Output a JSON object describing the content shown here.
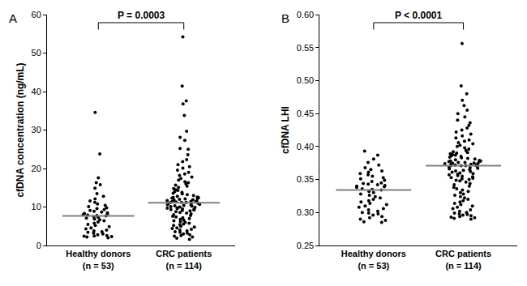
{
  "chart_data": [
    {
      "type": "strip",
      "panel_label": "A",
      "y_label": "cfDNA concentration (ng/mL)",
      "categories": [
        "Healthy donors\n(n = 53)",
        "CRC patients\n(n = 114)"
      ],
      "color": "#000000",
      "median_color": "#808080",
      "values": [
        [
          34.6,
          23.8,
          17.6,
          16.3,
          15.8,
          14.9,
          13.5,
          12.8,
          12.1,
          11.6,
          11.2,
          10.8,
          10.4,
          10.1,
          9.8,
          9.6,
          9.3,
          9.1,
          8.9,
          8.7,
          8.5,
          8.3,
          8.2,
          8.0,
          7.9,
          7.8,
          7.7,
          7.5,
          7.3,
          7.1,
          6.9,
          6.7,
          6.4,
          6.1,
          5.8,
          5.5,
          5.2,
          4.9,
          4.6,
          4.3,
          4.0,
          3.8,
          3.6,
          3.4,
          3.2,
          3.0,
          2.8,
          2.6,
          2.5,
          2.4,
          2.3,
          2.2,
          2.0
        ],
        [
          54.2,
          41.4,
          37.6,
          36.8,
          33.8,
          29.7,
          28.1,
          27.3,
          25.2,
          25.0,
          23.6,
          22.3,
          21.8,
          21.0,
          20.5,
          20.1,
          19.6,
          19.0,
          18.6,
          18.2,
          17.8,
          17.4,
          17.0,
          16.6,
          16.3,
          16.0,
          15.7,
          15.4,
          15.1,
          14.8,
          14.5,
          14.3,
          14.0,
          13.8,
          13.6,
          13.4,
          13.2,
          13.0,
          12.8,
          12.6,
          12.5,
          12.4,
          12.3,
          12.2,
          12.1,
          12.0,
          11.9,
          11.8,
          11.7,
          11.6,
          11.5,
          11.4,
          11.4,
          11.3,
          11.2,
          11.2,
          11.1,
          11.0,
          10.9,
          10.8,
          10.7,
          10.6,
          10.5,
          10.4,
          10.3,
          10.2,
          10.1,
          10.0,
          9.9,
          9.8,
          9.7,
          9.6,
          9.5,
          9.4,
          9.3,
          9.2,
          9.1,
          9.0,
          8.8,
          8.6,
          8.4,
          8.2,
          8.0,
          7.8,
          7.6,
          7.4,
          7.2,
          7.0,
          6.8,
          6.6,
          6.4,
          6.2,
          6.0,
          5.8,
          5.6,
          5.4,
          5.2,
          5.0,
          4.8,
          4.6,
          4.4,
          4.2,
          4.0,
          3.8,
          3.6,
          3.4,
          3.2,
          3.0,
          2.8,
          2.6,
          2.4,
          2.2,
          1.9,
          1.6
        ]
      ],
      "medians": [
        7.7,
        11.1
      ],
      "ylim": [
        0,
        60
      ],
      "yticks": [
        0,
        10,
        20,
        30,
        40,
        50,
        60
      ],
      "annotation": "P = 0.0003"
    },
    {
      "type": "strip",
      "panel_label": "B",
      "y_label": "cfDNA LHI",
      "categories": [
        "Healthy donors\n(n = 53)",
        "CRC patients\n(n = 114)"
      ],
      "color": "#000000",
      "median_color": "#808080",
      "values": [
        [
          0.393,
          0.387,
          0.381,
          0.376,
          0.372,
          0.368,
          0.365,
          0.363,
          0.361,
          0.359,
          0.357,
          0.355,
          0.353,
          0.351,
          0.349,
          0.347,
          0.345,
          0.344,
          0.343,
          0.342,
          0.341,
          0.34,
          0.339,
          0.338,
          0.336,
          0.335,
          0.334,
          0.332,
          0.33,
          0.328,
          0.326,
          0.324,
          0.322,
          0.32,
          0.318,
          0.316,
          0.314,
          0.312,
          0.31,
          0.308,
          0.306,
          0.304,
          0.302,
          0.3,
          0.299,
          0.298,
          0.296,
          0.294,
          0.292,
          0.29,
          0.288,
          0.286,
          0.285
        ],
        [
          0.556,
          0.492,
          0.48,
          0.47,
          0.462,
          0.455,
          0.45,
          0.445,
          0.44,
          0.436,
          0.432,
          0.428,
          0.425,
          0.422,
          0.419,
          0.416,
          0.413,
          0.41,
          0.408,
          0.406,
          0.404,
          0.402,
          0.4,
          0.398,
          0.396,
          0.394,
          0.392,
          0.391,
          0.39,
          0.389,
          0.388,
          0.387,
          0.386,
          0.385,
          0.384,
          0.383,
          0.382,
          0.381,
          0.38,
          0.379,
          0.378,
          0.378,
          0.377,
          0.377,
          0.376,
          0.376,
          0.375,
          0.375,
          0.374,
          0.374,
          0.373,
          0.373,
          0.372,
          0.372,
          0.371,
          0.371,
          0.371,
          0.37,
          0.369,
          0.368,
          0.367,
          0.366,
          0.365,
          0.364,
          0.363,
          0.362,
          0.361,
          0.36,
          0.359,
          0.358,
          0.357,
          0.356,
          0.355,
          0.354,
          0.353,
          0.352,
          0.351,
          0.35,
          0.349,
          0.348,
          0.346,
          0.344,
          0.342,
          0.34,
          0.338,
          0.336,
          0.334,
          0.332,
          0.33,
          0.328,
          0.326,
          0.324,
          0.322,
          0.32,
          0.318,
          0.316,
          0.314,
          0.312,
          0.31,
          0.308,
          0.306,
          0.304,
          0.302,
          0.3,
          0.299,
          0.298,
          0.297,
          0.296,
          0.295,
          0.294,
          0.293,
          0.292,
          0.291,
          0.29
        ]
      ],
      "medians": [
        0.334,
        0.371
      ],
      "ylim": [
        0.25,
        0.6
      ],
      "yticks": [
        0.25,
        {
          "value": 0.3,
          "label": "0.30"
        },
        0.35,
        {
          "value": 0.4,
          "label": "0.40"
        },
        0.45,
        {
          "value": 0.5,
          "label": "0.50"
        },
        0.55,
        {
          "value": 0.6,
          "label": "0.60"
        }
      ],
      "annotation": "P < 0.0001"
    }
  ]
}
